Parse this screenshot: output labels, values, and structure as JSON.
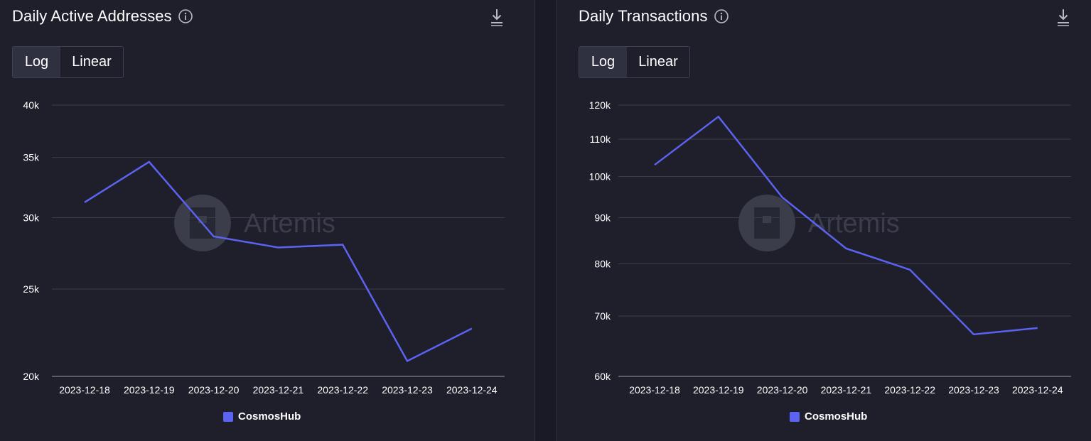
{
  "colors": {
    "background": "#1e1f2b",
    "gridline": "#3a3c4a",
    "axis": "#5a5c6a",
    "series": "#5b63f0",
    "watermark": "#3b3d4a"
  },
  "watermark": {
    "text": "Artemis"
  },
  "charts": [
    {
      "title": "Daily Active Addresses",
      "toggle": {
        "log_label": "Log",
        "linear_label": "Linear",
        "selected": "Log"
      },
      "legend_label": "CosmosHub",
      "y_ticks": [
        {
          "label": "40k",
          "value": 40000
        },
        {
          "label": "35k",
          "value": 35000
        },
        {
          "label": "30k",
          "value": 30000
        },
        {
          "label": "25k",
          "value": 25000
        },
        {
          "label": "20k",
          "value": 20000
        }
      ]
    },
    {
      "title": "Daily Transactions",
      "toggle": {
        "log_label": "Log",
        "linear_label": "Linear",
        "selected": "Log"
      },
      "legend_label": "CosmosHub",
      "y_ticks": [
        {
          "label": "120k",
          "value": 120000
        },
        {
          "label": "110k",
          "value": 110000
        },
        {
          "label": "100k",
          "value": 100000
        },
        {
          "label": "90k",
          "value": 90000
        },
        {
          "label": "80k",
          "value": 80000
        },
        {
          "label": "70k",
          "value": 70000
        },
        {
          "label": "60k",
          "value": 60000
        }
      ]
    }
  ],
  "chart_data": [
    {
      "type": "line",
      "title": "Daily Active Addresses",
      "xlabel": "",
      "ylabel": "",
      "yscale": "log",
      "ylim": [
        20000,
        40000
      ],
      "grid": true,
      "legend": "bottom-center",
      "x": [
        "2023-12-18",
        "2023-12-19",
        "2023-12-20",
        "2023-12-21",
        "2023-12-22",
        "2023-12-23",
        "2023-12-24"
      ],
      "series": [
        {
          "name": "CosmosHub",
          "values": [
            31200,
            34600,
            28600,
            27800,
            28000,
            20800,
            22600
          ]
        }
      ]
    },
    {
      "type": "line",
      "title": "Daily Transactions",
      "xlabel": "",
      "ylabel": "",
      "yscale": "log",
      "ylim": [
        60000,
        120000
      ],
      "grid": true,
      "legend": "bottom-center",
      "x": [
        "2023-12-18",
        "2023-12-19",
        "2023-12-20",
        "2023-12-21",
        "2023-12-22",
        "2023-12-23",
        "2023-12-24"
      ],
      "series": [
        {
          "name": "CosmosHub",
          "values": [
            103000,
            116500,
            94800,
            83200,
            78800,
            66800,
            67900
          ]
        }
      ]
    }
  ]
}
